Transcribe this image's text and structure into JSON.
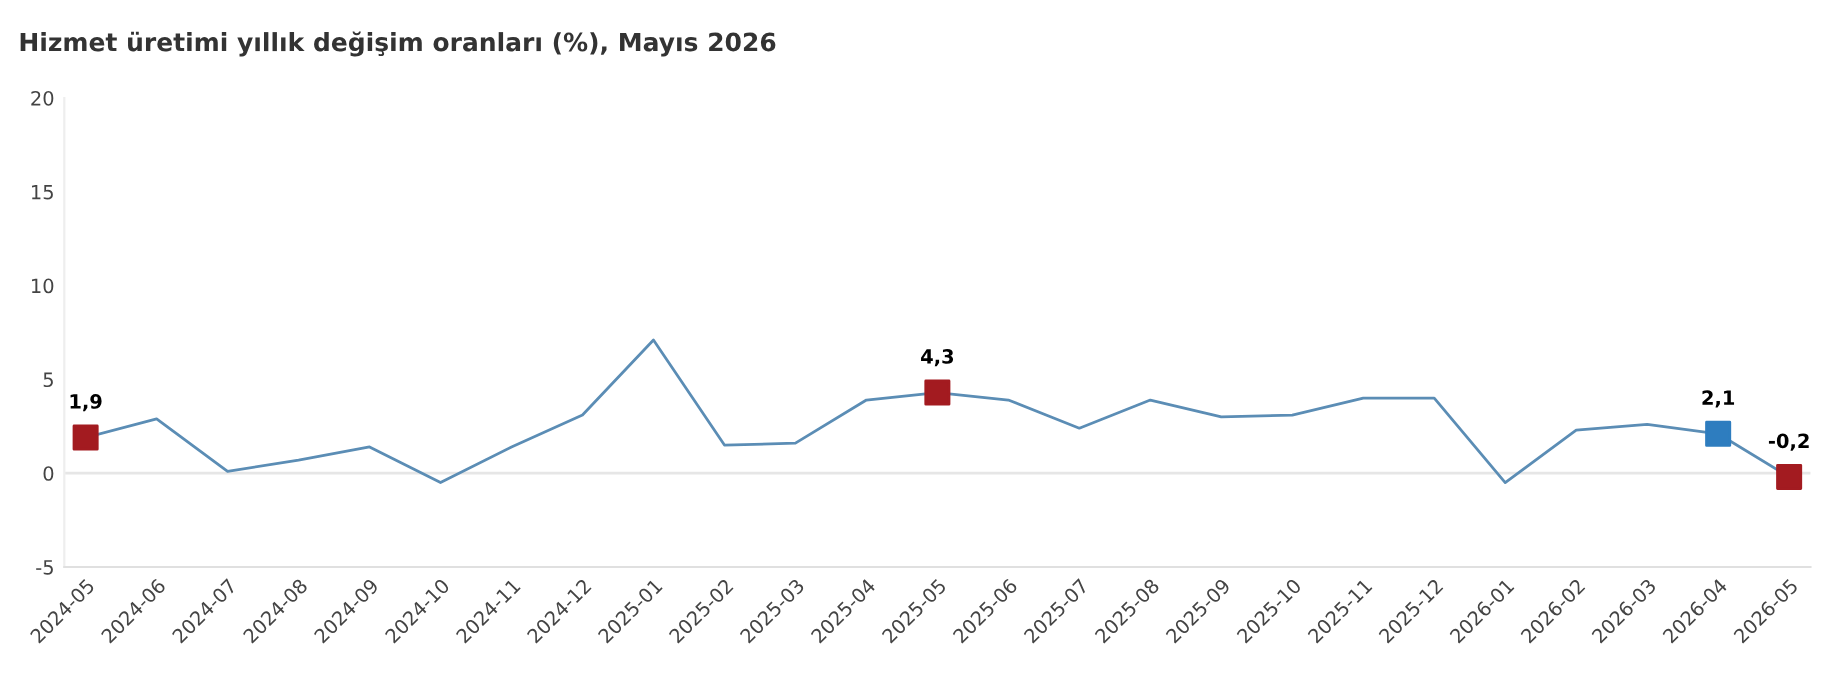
{
  "chart_data": {
    "type": "line",
    "title": "Hizmet üretimi yıllık değişim oranları (%), Mayıs 2026",
    "categories": [
      "2024-05",
      "2024-06",
      "2024-07",
      "2024-08",
      "2024-09",
      "2024-10",
      "2024-11",
      "2024-12",
      "2025-01",
      "2025-02",
      "2025-03",
      "2025-04",
      "2025-05",
      "2025-06",
      "2025-07",
      "2025-08",
      "2025-09",
      "2025-10",
      "2025-11",
      "2025-12",
      "2026-01",
      "2026-02",
      "2026-03",
      "2026-04",
      "2026-05"
    ],
    "series": [
      {
        "color": "#5b8db5",
        "marker": "none",
        "values": [
          1.9,
          2.9,
          0.1,
          0.7,
          1.4,
          -0.5,
          1.4,
          3.1,
          7.1,
          1.5,
          1.6,
          3.9,
          4.3,
          3.9,
          2.4,
          3.9,
          3.0,
          3.1,
          4.0,
          4.0,
          -0.5,
          2.3,
          2.6,
          2.1,
          -0.2
        ]
      },
      {
        "type": "scatter",
        "color": "#a31b20",
        "marker": "square",
        "values": [
          1.9,
          null,
          null,
          null,
          null,
          null,
          null,
          null,
          null,
          null,
          null,
          null,
          4.3,
          null,
          null,
          null,
          null,
          null,
          null,
          null,
          null,
          null,
          null,
          null,
          -0.2
        ],
        "value_labels": [
          "1,9",
          null,
          null,
          null,
          null,
          null,
          null,
          null,
          null,
          null,
          null,
          null,
          "4,3",
          null,
          null,
          null,
          null,
          null,
          null,
          null,
          null,
          null,
          null,
          null,
          "-0,2"
        ]
      },
      {
        "type": "scatter",
        "color": "#2e7dbf",
        "marker": "square",
        "values": [
          null,
          null,
          null,
          null,
          null,
          null,
          null,
          null,
          null,
          null,
          null,
          null,
          null,
          null,
          null,
          null,
          null,
          null,
          null,
          null,
          null,
          null,
          null,
          2.1,
          null
        ],
        "value_labels": [
          null,
          null,
          null,
          null,
          null,
          null,
          null,
          null,
          null,
          null,
          null,
          null,
          null,
          null,
          null,
          null,
          null,
          null,
          null,
          null,
          null,
          null,
          null,
          "2,1",
          null
        ]
      }
    ],
    "ylim": [
      -5,
      20
    ],
    "yticks": [
      -5,
      0,
      5,
      10,
      15,
      20
    ],
    "grid": false,
    "legend": false,
    "ref_lines": [
      {
        "axis": "y",
        "value": 0,
        "color": "#e6e6e6"
      }
    ]
  }
}
